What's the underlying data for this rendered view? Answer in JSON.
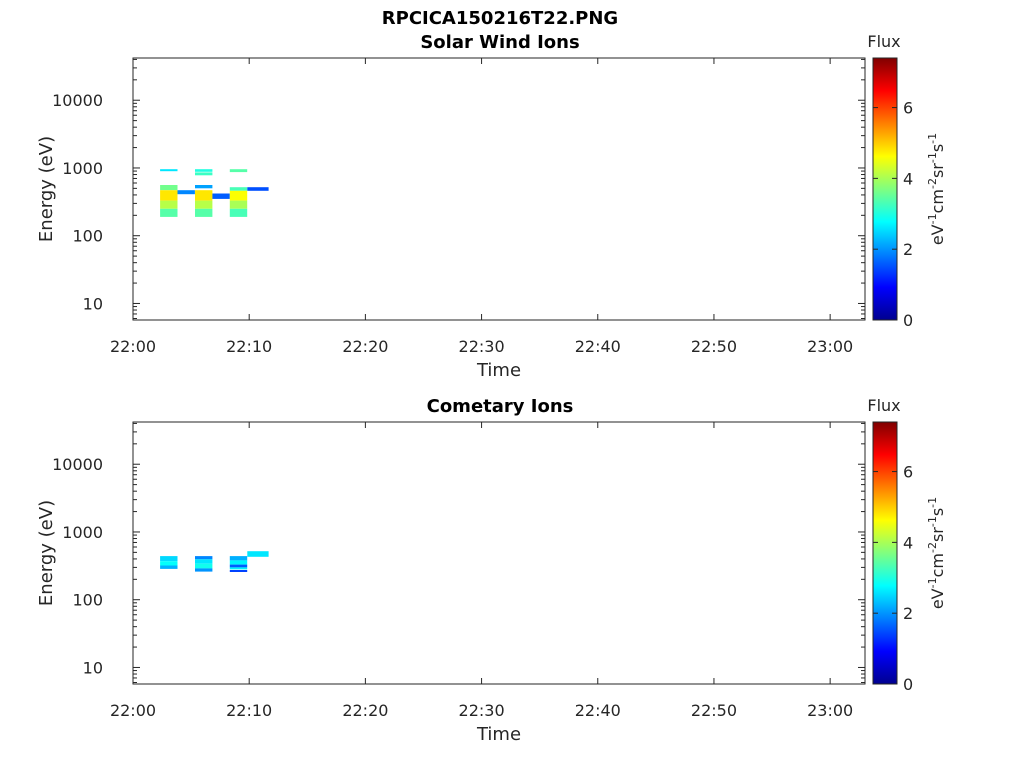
{
  "figure_title": "RPCICA150216T22.PNG",
  "chart_data": [
    {
      "type": "heatmap",
      "title": "Solar Wind Ions",
      "xlabel": "Time",
      "ylabel": "Energy (eV)",
      "x_range": [
        "22:00",
        "23:03"
      ],
      "y_range": [
        5.7,
        42000
      ],
      "y_scale": "log",
      "x_ticks": [
        "22:00",
        "22:10",
        "22:20",
        "22:30",
        "22:40",
        "22:50",
        "23:00"
      ],
      "y_ticks": [
        "10",
        "100",
        "1000",
        "10000"
      ],
      "colorbar": {
        "label": "Flux",
        "unit_prefix": "eV",
        "unit_mid": "cm",
        "unit_sr": "sr",
        "unit_s": "s",
        "range": [
          0,
          7.4
        ],
        "ticks": [
          "0",
          "2",
          "4",
          "6"
        ],
        "colormap": "jet"
      },
      "cells": [
        {
          "t0": "22:02:20",
          "t1": "22:03:50",
          "e0": 900,
          "e1": 960,
          "v": 2.6
        },
        {
          "t0": "22:02:20",
          "t1": "22:03:50",
          "e0": 470,
          "e1": 560,
          "v": 3.6
        },
        {
          "t0": "22:02:20",
          "t1": "22:03:50",
          "e0": 330,
          "e1": 470,
          "v": 4.8
        },
        {
          "t0": "22:02:20",
          "t1": "22:03:50",
          "e0": 250,
          "e1": 330,
          "v": 4.1
        },
        {
          "t0": "22:02:20",
          "t1": "22:03:50",
          "e0": 190,
          "e1": 250,
          "v": 3.4
        },
        {
          "t0": "22:03:50",
          "t1": "22:05:20",
          "e0": 410,
          "e1": 470,
          "v": 1.9
        },
        {
          "t0": "22:05:20",
          "t1": "22:06:50",
          "e0": 880,
          "e1": 960,
          "v": 3.0
        },
        {
          "t0": "22:05:20",
          "t1": "22:06:50",
          "e0": 780,
          "e1": 860,
          "v": 3.2
        },
        {
          "t0": "22:05:20",
          "t1": "22:06:50",
          "e0": 500,
          "e1": 560,
          "v": 2.1
        },
        {
          "t0": "22:05:20",
          "t1": "22:06:50",
          "e0": 330,
          "e1": 470,
          "v": 4.8
        },
        {
          "t0": "22:05:20",
          "t1": "22:06:50",
          "e0": 250,
          "e1": 330,
          "v": 4.1
        },
        {
          "t0": "22:05:20",
          "t1": "22:06:50",
          "e0": 190,
          "e1": 250,
          "v": 3.4
        },
        {
          "t0": "22:06:50",
          "t1": "22:08:20",
          "e0": 350,
          "e1": 420,
          "v": 1.6
        },
        {
          "t0": "22:08:20",
          "t1": "22:09:50",
          "e0": 870,
          "e1": 960,
          "v": 3.4
        },
        {
          "t0": "22:08:20",
          "t1": "22:09:50",
          "e0": 460,
          "e1": 520,
          "v": 3.3
        },
        {
          "t0": "22:08:20",
          "t1": "22:09:50",
          "e0": 330,
          "e1": 460,
          "v": 4.6
        },
        {
          "t0": "22:08:20",
          "t1": "22:09:50",
          "e0": 250,
          "e1": 330,
          "v": 4.0
        },
        {
          "t0": "22:08:20",
          "t1": "22:09:50",
          "e0": 190,
          "e1": 250,
          "v": 3.3
        },
        {
          "t0": "22:09:50",
          "t1": "22:11:40",
          "e0": 460,
          "e1": 520,
          "v": 1.5
        }
      ]
    },
    {
      "type": "heatmap",
      "title": "Cometary Ions",
      "xlabel": "Time",
      "ylabel": "Energy (eV)",
      "x_range": [
        "22:00",
        "23:03"
      ],
      "y_range": [
        5.7,
        42000
      ],
      "y_scale": "log",
      "x_ticks": [
        "22:00",
        "22:10",
        "22:20",
        "22:30",
        "22:40",
        "22:50",
        "23:00"
      ],
      "y_ticks": [
        "10",
        "100",
        "1000",
        "10000"
      ],
      "colorbar": {
        "label": "Flux",
        "unit_prefix": "eV",
        "unit_mid": "cm",
        "unit_sr": "sr",
        "unit_s": "s",
        "range": [
          0,
          7.4
        ],
        "ticks": [
          "0",
          "2",
          "4",
          "6"
        ],
        "colormap": "jet"
      },
      "cells": [
        {
          "t0": "22:02:20",
          "t1": "22:03:50",
          "e0": 370,
          "e1": 440,
          "v": 2.5
        },
        {
          "t0": "22:02:20",
          "t1": "22:03:50",
          "e0": 320,
          "e1": 370,
          "v": 2.8
        },
        {
          "t0": "22:02:20",
          "t1": "22:03:50",
          "e0": 285,
          "e1": 320,
          "v": 2.2
        },
        {
          "t0": "22:05:20",
          "t1": "22:06:50",
          "e0": 395,
          "e1": 440,
          "v": 1.9
        },
        {
          "t0": "22:05:20",
          "t1": "22:06:50",
          "e0": 340,
          "e1": 395,
          "v": 2.6
        },
        {
          "t0": "22:05:20",
          "t1": "22:06:50",
          "e0": 290,
          "e1": 340,
          "v": 2.9
        },
        {
          "t0": "22:05:20",
          "t1": "22:06:50",
          "e0": 260,
          "e1": 290,
          "v": 2.0
        },
        {
          "t0": "22:08:20",
          "t1": "22:09:50",
          "e0": 380,
          "e1": 440,
          "v": 2.2
        },
        {
          "t0": "22:08:20",
          "t1": "22:09:50",
          "e0": 330,
          "e1": 380,
          "v": 2.7
        },
        {
          "t0": "22:08:20",
          "t1": "22:09:50",
          "e0": 300,
          "e1": 330,
          "v": 1.6
        },
        {
          "t0": "22:08:20",
          "t1": "22:09:50",
          "e0": 285,
          "e1": 300,
          "v": 2.7
        },
        {
          "t0": "22:08:20",
          "t1": "22:09:50",
          "e0": 260,
          "e1": 275,
          "v": 1.4
        },
        {
          "t0": "22:09:50",
          "t1": "22:11:40",
          "e0": 430,
          "e1": 520,
          "v": 2.6
        }
      ]
    }
  ]
}
